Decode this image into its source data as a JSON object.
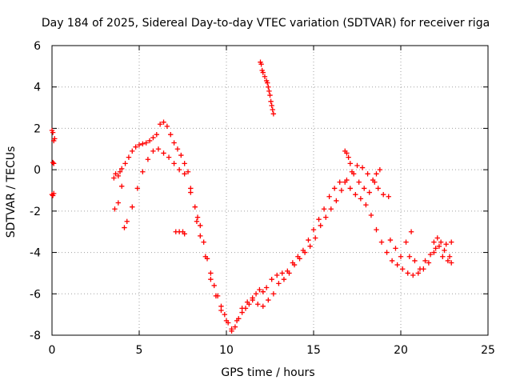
{
  "chart_data": {
    "type": "scatter",
    "title": "Day 184 of 2025, Sidereal Day-to-day VTEC variation (SDTVAR) for receiver riga",
    "xlabel": "GPS time / hours",
    "ylabel": "SDTVAR / TECUs",
    "xlim": [
      0,
      25
    ],
    "ylim": [
      -8,
      6
    ],
    "xticks": [
      0,
      5,
      10,
      15,
      20,
      25
    ],
    "yticks": [
      -8,
      -6,
      -4,
      -2,
      0,
      2,
      4,
      6
    ],
    "grid": true,
    "marker": "+",
    "color": "#ff0000",
    "series": [
      {
        "name": "trace-a",
        "points": [
          [
            0.0,
            1.9
          ],
          [
            0.05,
            1.8
          ],
          [
            0.1,
            1.4
          ],
          [
            0.15,
            1.5
          ],
          [
            0.05,
            0.35
          ],
          [
            0.1,
            0.3
          ],
          [
            0.0,
            -1.2
          ],
          [
            0.05,
            -1.25
          ],
          [
            0.1,
            -1.15
          ],
          [
            3.55,
            -0.4
          ],
          [
            3.65,
            -0.2
          ],
          [
            3.8,
            -0.3
          ],
          [
            3.9,
            -0.1
          ],
          [
            4.0,
            0.05
          ],
          [
            4.2,
            0.3
          ],
          [
            4.4,
            0.6
          ],
          [
            4.6,
            0.9
          ],
          [
            4.8,
            1.1
          ],
          [
            5.0,
            1.2
          ],
          [
            5.2,
            1.25
          ],
          [
            5.4,
            1.3
          ],
          [
            5.6,
            1.4
          ],
          [
            5.8,
            1.55
          ],
          [
            6.0,
            1.7
          ],
          [
            6.2,
            2.2
          ],
          [
            6.4,
            2.3
          ],
          [
            6.6,
            2.1
          ],
          [
            6.8,
            1.7
          ],
          [
            7.0,
            1.3
          ],
          [
            7.2,
            1.0
          ],
          [
            7.4,
            0.7
          ],
          [
            7.6,
            0.3
          ],
          [
            7.8,
            -0.1
          ],
          [
            7.95,
            -0.9
          ],
          [
            7.95,
            -1.1
          ],
          [
            8.2,
            -1.8
          ],
          [
            8.35,
            -2.3
          ],
          [
            8.5,
            -2.7
          ],
          [
            8.7,
            -3.5
          ],
          [
            8.9,
            -4.3
          ],
          [
            9.1,
            -5.0
          ],
          [
            9.3,
            -5.6
          ],
          [
            9.5,
            -6.1
          ],
          [
            9.7,
            -6.6
          ],
          [
            9.9,
            -7.0
          ],
          [
            10.1,
            -7.4
          ],
          [
            10.3,
            -7.8
          ],
          [
            10.5,
            -7.6
          ],
          [
            10.7,
            -7.2
          ],
          [
            10.9,
            -6.9
          ],
          [
            11.1,
            -6.7
          ],
          [
            11.3,
            -6.5
          ],
          [
            11.5,
            -6.2
          ],
          [
            11.7,
            -6.0
          ],
          [
            11.9,
            -5.8
          ],
          [
            12.1,
            -5.9
          ],
          [
            12.3,
            -5.7
          ],
          [
            12.6,
            -5.3
          ],
          [
            12.9,
            -5.1
          ],
          [
            13.2,
            -5.0
          ],
          [
            13.5,
            -4.9
          ],
          [
            13.8,
            -4.5
          ],
          [
            14.1,
            -4.2
          ],
          [
            14.4,
            -3.9
          ],
          [
            14.7,
            -3.4
          ],
          [
            15.0,
            -2.9
          ],
          [
            15.3,
            -2.4
          ],
          [
            15.6,
            -1.9
          ],
          [
            15.9,
            -1.3
          ],
          [
            16.2,
            -0.9
          ],
          [
            16.5,
            -0.6
          ],
          [
            16.8,
            -0.6
          ],
          [
            17.1,
            -0.9
          ],
          [
            17.4,
            -1.2
          ],
          [
            17.7,
            -1.4
          ],
          [
            18.0,
            -1.7
          ],
          [
            18.3,
            -2.2
          ],
          [
            18.6,
            -2.9
          ],
          [
            18.9,
            -3.5
          ],
          [
            19.2,
            -4.0
          ],
          [
            19.5,
            -4.4
          ],
          [
            19.8,
            -4.6
          ],
          [
            20.1,
            -4.8
          ],
          [
            20.4,
            -5.0
          ],
          [
            20.7,
            -5.1
          ],
          [
            21.0,
            -5.0
          ],
          [
            21.3,
            -4.8
          ],
          [
            21.6,
            -4.5
          ],
          [
            21.9,
            -4.0
          ],
          [
            22.2,
            -3.7
          ],
          [
            22.5,
            -3.9
          ],
          [
            22.8,
            -4.2
          ]
        ]
      },
      {
        "name": "trace-b",
        "points": [
          [
            3.6,
            -1.9
          ],
          [
            3.8,
            -1.6
          ],
          [
            4.0,
            -0.8
          ],
          [
            4.15,
            -2.8
          ],
          [
            4.3,
            -2.5
          ],
          [
            4.6,
            -1.8
          ],
          [
            4.9,
            -0.9
          ],
          [
            5.2,
            -0.1
          ],
          [
            5.5,
            0.5
          ],
          [
            5.8,
            0.9
          ],
          [
            6.1,
            1.0
          ],
          [
            6.4,
            0.8
          ],
          [
            6.7,
            0.6
          ],
          [
            7.0,
            0.3
          ],
          [
            7.3,
            0.0
          ],
          [
            7.6,
            -0.2
          ],
          [
            7.1,
            -3.0
          ],
          [
            7.3,
            -3.0
          ],
          [
            7.5,
            -3.0
          ],
          [
            7.6,
            -3.1
          ],
          [
            8.3,
            -2.5
          ],
          [
            8.5,
            -3.2
          ],
          [
            8.8,
            -4.2
          ],
          [
            9.1,
            -5.3
          ],
          [
            9.4,
            -6.1
          ],
          [
            9.7,
            -6.8
          ],
          [
            10.0,
            -7.3
          ],
          [
            10.3,
            -7.7
          ],
          [
            10.6,
            -7.3
          ],
          [
            10.9,
            -6.7
          ],
          [
            11.2,
            -6.4
          ],
          [
            11.5,
            -6.3
          ],
          [
            11.8,
            -6.5
          ],
          [
            12.1,
            -6.6
          ],
          [
            12.4,
            -6.3
          ],
          [
            12.7,
            -6.0
          ],
          [
            13.0,
            -5.5
          ],
          [
            13.3,
            -5.3
          ],
          [
            13.6,
            -5.0
          ],
          [
            13.9,
            -4.6
          ],
          [
            14.2,
            -4.3
          ],
          [
            14.5,
            -4.0
          ],
          [
            14.8,
            -3.7
          ],
          [
            15.1,
            -3.3
          ],
          [
            15.4,
            -2.7
          ],
          [
            15.7,
            -2.3
          ],
          [
            16.0,
            -1.9
          ],
          [
            16.3,
            -1.5
          ],
          [
            16.6,
            -1.0
          ],
          [
            16.9,
            -0.5
          ],
          [
            17.2,
            -0.1
          ],
          [
            17.5,
            0.2
          ],
          [
            17.8,
            0.1
          ],
          [
            18.1,
            -0.2
          ],
          [
            18.4,
            -0.5
          ],
          [
            18.7,
            -0.9
          ],
          [
            19.0,
            -1.2
          ],
          [
            19.3,
            -1.3
          ],
          [
            16.8,
            0.9
          ],
          [
            16.9,
            0.8
          ],
          [
            17.0,
            0.6
          ],
          [
            17.1,
            0.3
          ],
          [
            17.3,
            -0.2
          ],
          [
            17.6,
            -0.6
          ],
          [
            17.9,
            -0.9
          ],
          [
            18.2,
            -1.1
          ],
          [
            18.5,
            -0.6
          ],
          [
            18.6,
            -0.2
          ],
          [
            18.8,
            0.0
          ],
          [
            19.4,
            -3.4
          ],
          [
            19.7,
            -3.8
          ],
          [
            20.0,
            -4.2
          ],
          [
            20.3,
            -3.5
          ],
          [
            20.6,
            -3.0
          ],
          [
            20.5,
            -4.2
          ],
          [
            20.8,
            -4.4
          ],
          [
            21.1,
            -4.8
          ],
          [
            21.4,
            -4.4
          ],
          [
            21.7,
            -4.1
          ],
          [
            22.0,
            -3.8
          ],
          [
            22.3,
            -3.5
          ],
          [
            22.6,
            -3.6
          ],
          [
            22.9,
            -3.5
          ],
          [
            22.9,
            -4.5
          ],
          [
            21.9,
            -3.5
          ],
          [
            22.1,
            -3.3
          ],
          [
            22.4,
            -4.2
          ],
          [
            22.7,
            -4.4
          ]
        ]
      },
      {
        "name": "trace-c",
        "points": [
          [
            11.95,
            5.2
          ],
          [
            12.0,
            5.1
          ],
          [
            12.05,
            4.8
          ],
          [
            12.1,
            4.7
          ],
          [
            12.2,
            4.5
          ],
          [
            12.3,
            4.3
          ],
          [
            12.35,
            4.2
          ],
          [
            12.4,
            4.0
          ],
          [
            12.45,
            3.8
          ],
          [
            12.5,
            3.6
          ],
          [
            12.55,
            3.3
          ],
          [
            12.6,
            3.1
          ],
          [
            12.65,
            2.9
          ],
          [
            12.7,
            2.7
          ]
        ]
      }
    ]
  }
}
